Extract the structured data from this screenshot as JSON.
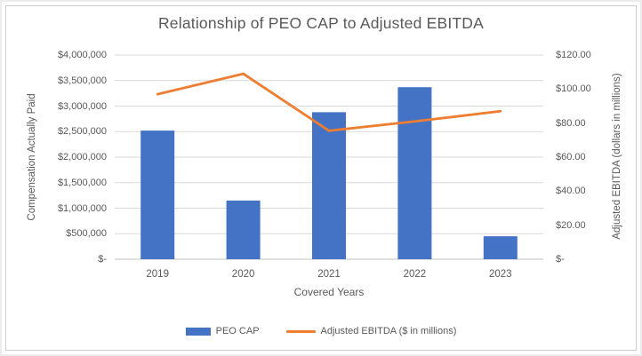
{
  "window": {
    "background": "#ffffff",
    "frame_border_color": "#cbcbcb"
  },
  "chart_data": {
    "type": "combo",
    "title": "Relationship of PEO CAP to Adjusted EBITDA",
    "categories": [
      "2019",
      "2020",
      "2021",
      "2022",
      "2023"
    ],
    "series": [
      {
        "name": "PEO CAP",
        "type": "bar",
        "axis": "left",
        "color": "#4472C4",
        "values": [
          2520000,
          1150000,
          2880000,
          3370000,
          450000
        ]
      },
      {
        "name": "Adjusted EBITDA ($ in millions)",
        "type": "line",
        "axis": "right",
        "color": "#ED7D31",
        "values": [
          97,
          109,
          75.5,
          81,
          87
        ]
      }
    ],
    "x_axis": {
      "title": "Covered Years"
    },
    "left_axis": {
      "title": "Compensation Actually Paid",
      "min": 0,
      "max": 4000000,
      "tick_labels": [
        "$4,000,000",
        "$3,500,000",
        "$3,000,000",
        "$2,500,000",
        "$2,000,000",
        "$1,500,000",
        "$1,000,000",
        "$500,000",
        "$-"
      ]
    },
    "right_axis": {
      "title": "Adjusted EBITDA (dollars in millions)",
      "min": 0,
      "max": 120,
      "tick_labels": [
        "$120.00",
        "$100.00",
        "$80.00",
        "$60.00",
        "$40.00",
        "$20.00",
        "$-"
      ]
    },
    "legend": {
      "position": "bottom",
      "entries": [
        "PEO CAP",
        "Adjusted EBITDA ($ in millions)"
      ]
    },
    "gridlines": true,
    "colors": {
      "text": "#595959",
      "gridline": "#D9D9D9",
      "axis_line": "#C0C0C0"
    }
  }
}
